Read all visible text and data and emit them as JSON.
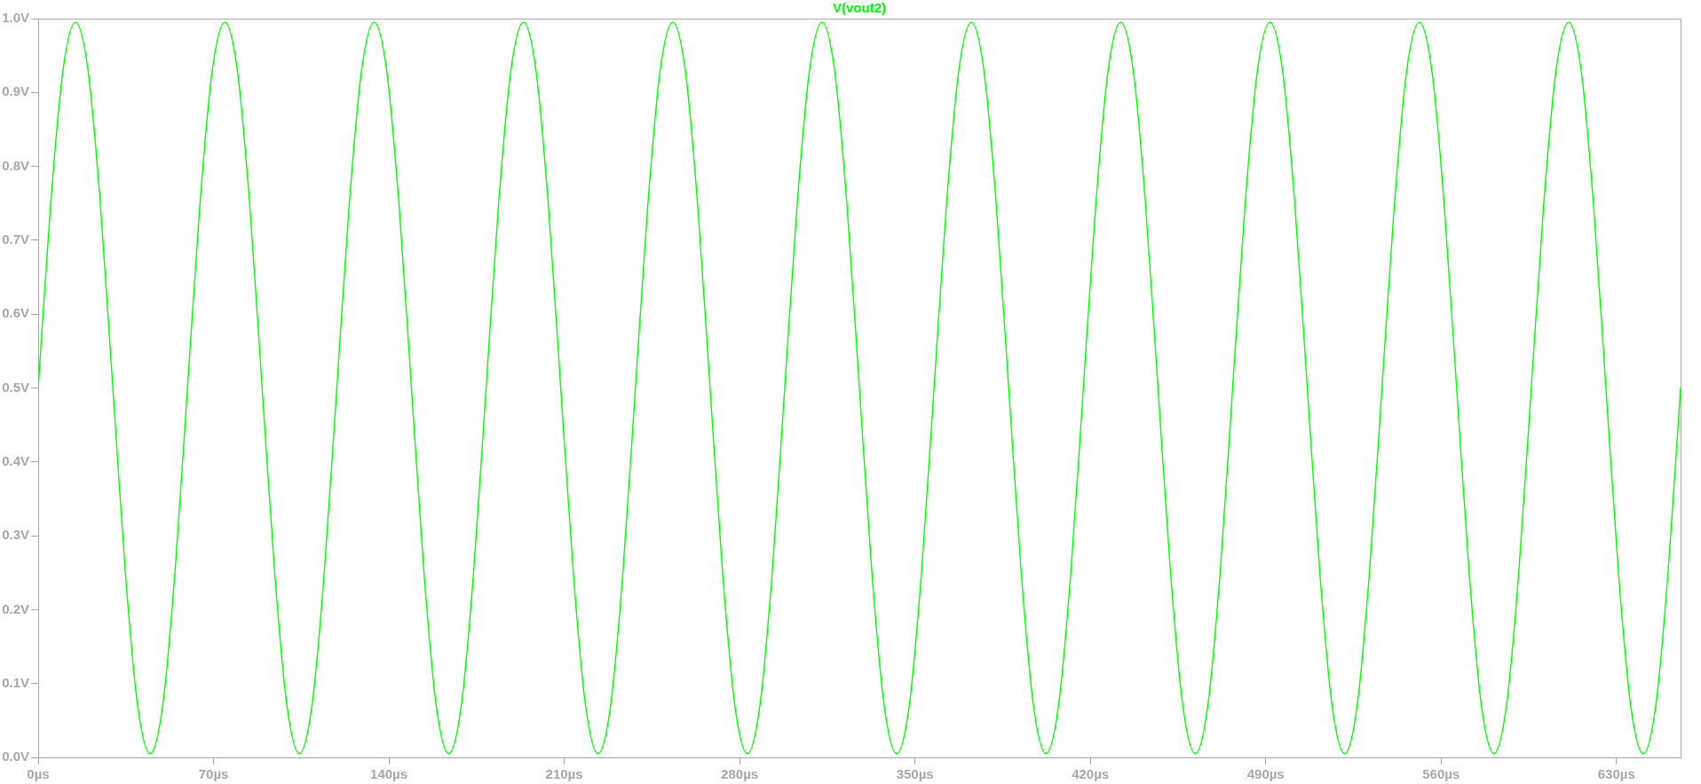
{
  "chart_data": {
    "type": "line",
    "x": [
      0,
      5.0,
      9.9,
      14.9,
      19.9,
      24.8,
      29.8,
      34.8,
      39.7,
      44.7,
      49.7,
      54.6,
      59.6,
      64.6,
      69.5,
      74.5,
      79.5,
      84.4,
      89.4,
      94.4,
      99.3,
      104.3,
      109.3,
      114.2,
      119.2,
      124.2,
      129.1,
      134.1,
      139.1,
      144.0,
      149.0,
      154.0,
      158.9,
      163.9,
      168.9,
      173.8,
      178.8,
      183.8,
      188.7,
      193.7,
      198.7,
      203.6,
      208.6,
      213.6,
      218.5,
      223.5,
      228.5,
      233.4,
      238.4,
      243.4,
      248.3,
      253.3,
      258.3,
      263.2,
      268.2,
      273.2,
      278.1,
      283.1,
      288.1,
      293.0,
      298.0,
      303.0,
      307.9,
      312.9,
      317.9,
      322.8,
      327.8,
      332.8,
      337.7,
      342.7,
      347.7,
      352.6,
      357.6,
      362.6,
      367.5,
      372.5,
      377.5,
      382.4,
      387.4,
      392.4,
      397.3,
      402.3,
      407.3,
      412.2,
      417.2,
      422.2,
      427.1,
      432.1,
      437.1,
      442.0,
      447.0,
      452.0,
      456.9,
      461.9,
      466.9,
      471.8,
      476.8,
      481.8,
      486.7,
      491.7,
      496.7,
      501.6,
      506.6,
      511.6,
      516.5,
      521.5,
      526.5,
      531.4,
      536.4,
      541.4,
      546.3,
      551.3,
      556.3,
      561.2,
      566.2,
      571.2,
      576.1,
      581.1,
      586.1,
      591.0,
      596.0,
      601.0,
      605.9,
      610.9,
      615.9,
      620.8,
      625.8,
      630.8,
      635.7,
      640.7,
      645.7,
      650.6,
      655.6
    ],
    "series": [
      {
        "name": "V(vout2)",
        "color": "#00ff00",
        "values": [
          0.5,
          0.75,
          0.93,
          0.995,
          0.93,
          0.75,
          0.5,
          0.25,
          0.07,
          0.005,
          0.07,
          0.25,
          0.5,
          0.75,
          0.93,
          0.995,
          0.93,
          0.75,
          0.5,
          0.25,
          0.07,
          0.005,
          0.07,
          0.25,
          0.5,
          0.75,
          0.93,
          0.995,
          0.93,
          0.75,
          0.5,
          0.25,
          0.07,
          0.005,
          0.07,
          0.25,
          0.5,
          0.75,
          0.93,
          0.995,
          0.93,
          0.75,
          0.5,
          0.25,
          0.07,
          0.005,
          0.07,
          0.25,
          0.5,
          0.75,
          0.93,
          0.995,
          0.93,
          0.75,
          0.5,
          0.25,
          0.07,
          0.005,
          0.07,
          0.25,
          0.5,
          0.75,
          0.93,
          0.995,
          0.93,
          0.75,
          0.5,
          0.25,
          0.07,
          0.005,
          0.07,
          0.25,
          0.5,
          0.75,
          0.93,
          0.995,
          0.93,
          0.75,
          0.5,
          0.25,
          0.07,
          0.005,
          0.07,
          0.25,
          0.5,
          0.75,
          0.93,
          0.995,
          0.93,
          0.75,
          0.5,
          0.25,
          0.07,
          0.005,
          0.07,
          0.25,
          0.5,
          0.75,
          0.93,
          0.995,
          0.93,
          0.75,
          0.5,
          0.25,
          0.07,
          0.005,
          0.07,
          0.25,
          0.5,
          0.75,
          0.93,
          0.995,
          0.93,
          0.75,
          0.5,
          0.25,
          0.07,
          0.005,
          0.07,
          0.25,
          0.5,
          0.75,
          0.93,
          0.995,
          0.93,
          0.75,
          0.5,
          0.25,
          0.07,
          0.005,
          0.07,
          0.25,
          0.5
        ]
      }
    ],
    "xlim": [
      0,
      655.6
    ],
    "ylim": [
      0,
      1.0
    ],
    "xticks": [
      {
        "value": 0,
        "label": "0µs"
      },
      {
        "value": 70,
        "label": "70µs"
      },
      {
        "value": 140,
        "label": "140µs"
      },
      {
        "value": 210,
        "label": "210µs"
      },
      {
        "value": 280,
        "label": "280µs"
      },
      {
        "value": 350,
        "label": "350µs"
      },
      {
        "value": 420,
        "label": "420µs"
      },
      {
        "value": 490,
        "label": "490µs"
      },
      {
        "value": 560,
        "label": "560µs"
      },
      {
        "value": 630,
        "label": "630µs"
      }
    ],
    "yticks": [
      {
        "value": 0,
        "label": "0.0V"
      },
      {
        "value": 0.1,
        "label": "0.1V"
      },
      {
        "value": 0.2,
        "label": "0.2V"
      },
      {
        "value": 0.3,
        "label": "0.3V"
      },
      {
        "value": 0.4,
        "label": "0.4V"
      },
      {
        "value": 0.5,
        "label": "0.5V"
      },
      {
        "value": 0.6,
        "label": "0.6V"
      },
      {
        "value": 0.7,
        "label": "0.7V"
      },
      {
        "value": 0.8,
        "label": "0.8V"
      },
      {
        "value": 0.9,
        "label": "0.9V"
      },
      {
        "value": 1.0,
        "label": "1.0V"
      }
    ],
    "legend": "top",
    "marker": "none"
  }
}
